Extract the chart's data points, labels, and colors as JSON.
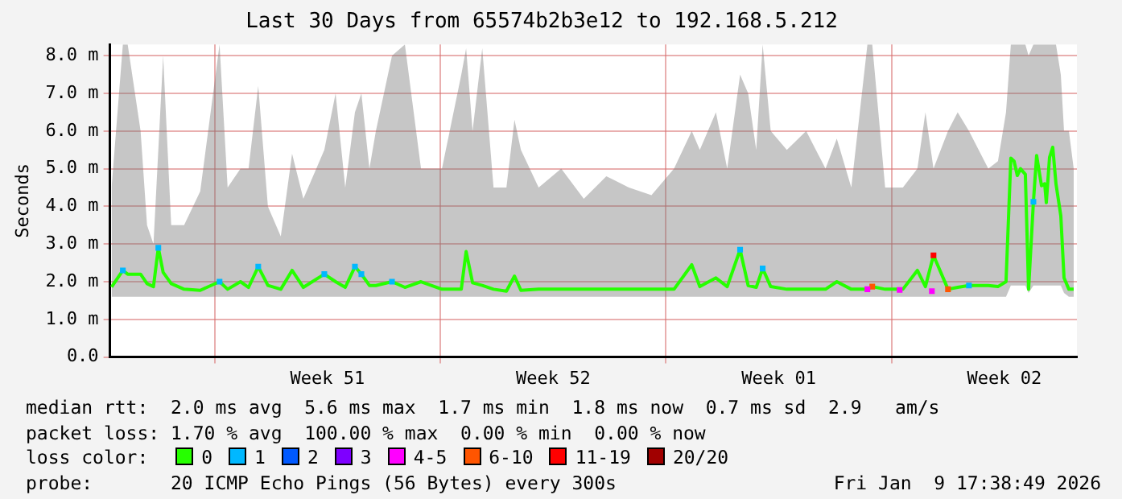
{
  "chart_data": {
    "type": "line",
    "title": "Last 30 Days from 65574b2b3e12 to 192.168.5.212",
    "ylabel": "Seconds",
    "xlim": [
      "2025-12-10T18:00",
      "2026-01-09T18:00"
    ],
    "xticks": [
      {
        "value": "2025-12-14T00:00",
        "label": null
      },
      {
        "value": "2025-12-17T12:00",
        "label": "Week 51"
      },
      {
        "value": "2025-12-21T00:00",
        "label": null
      },
      {
        "value": "2025-12-24T12:00",
        "label": "Week 52"
      },
      {
        "value": "2025-12-28T00:00",
        "label": null
      },
      {
        "value": "2025-12-31T12:00",
        "label": "Week 01"
      },
      {
        "value": "2026-01-04T00:00",
        "label": null
      },
      {
        "value": "2026-01-07T12:00",
        "label": "Week 02"
      }
    ],
    "ylim": [
      0,
      8.3
    ],
    "yticks": [
      {
        "value": 0,
        "label": "0.0"
      },
      {
        "value": 1,
        "label": "1.0 m"
      },
      {
        "value": 2,
        "label": "2.0 m"
      },
      {
        "value": 3,
        "label": "3.0 m"
      },
      {
        "value": 4,
        "label": "4.0 m"
      },
      {
        "value": 5,
        "label": "5.0 m"
      },
      {
        "value": 6,
        "label": "6.0 m"
      },
      {
        "value": 7,
        "label": "7.0 m"
      },
      {
        "value": 8,
        "label": "8.0 m"
      }
    ],
    "grid": true,
    "legend": "bottom",
    "legend_title": "loss color:",
    "marker": "none",
    "series": [
      {
        "name": "0",
        "color": "#26ff00",
        "x": [
          "2025-12-10T19:12",
          "2025-12-11T03:36",
          "2025-12-11T07:12",
          "2025-12-11T16:48",
          "2025-12-11T21:36",
          "2025-12-12T02:24",
          "2025-12-12T06:00",
          "2025-12-12T09:36",
          "2025-12-12T15:36",
          "2025-12-13T01:12",
          "2025-12-13T13:12",
          "2025-12-14T03:36",
          "2025-12-14T09:36",
          "2025-12-14T19:12",
          "2025-12-15T01:12",
          "2025-12-15T08:24",
          "2025-12-15T15:36",
          "2025-12-16T01:12",
          "2025-12-16T09:36",
          "2025-12-16T18:00",
          "2025-12-17T09:36",
          "2025-12-17T18:00",
          "2025-12-18T01:12",
          "2025-12-18T08:24",
          "2025-12-18T13:12",
          "2025-12-18T19:12",
          "2025-12-19T00:00",
          "2025-12-19T12:00",
          "2025-12-19T21:36",
          "2025-12-20T09:36",
          "2025-12-21T01:12",
          "2025-12-21T15:36",
          "2025-12-21T19:12",
          "2025-12-22T00:00",
          "2025-12-22T07:12",
          "2025-12-22T15:36",
          "2025-12-23T01:12",
          "2025-12-23T07:12",
          "2025-12-23T12:00",
          "2025-12-24T01:12",
          "2025-12-24T18:00",
          "2025-12-25T10:48",
          "2025-12-26T03:36",
          "2025-12-26T20:24",
          "2025-12-27T13:12",
          "2025-12-28T06:00",
          "2025-12-28T19:12",
          "2025-12-29T01:12",
          "2025-12-29T13:12",
          "2025-12-29T21:36",
          "2025-12-30T07:12",
          "2025-12-30T13:12",
          "2025-12-30T19:12",
          "2025-12-31T00:00",
          "2025-12-31T06:00",
          "2025-12-31T18:00",
          "2026-01-01T08:24",
          "2026-01-01T22:48",
          "2026-01-02T07:12",
          "2026-01-02T18:00",
          "2026-01-03T06:00",
          "2026-01-03T09:36",
          "2026-01-03T19:12",
          "2026-01-04T08:24",
          "2026-01-04T19:12",
          "2026-01-05T01:12",
          "2026-01-05T07:12",
          "2026-01-05T18:00",
          "2026-01-06T01:12",
          "2026-01-06T09:36",
          "2026-01-07T00:00",
          "2026-01-07T07:12",
          "2026-01-07T13:12",
          "2026-01-07T16:48",
          "2026-01-07T19:12",
          "2026-01-07T21:36",
          "2026-01-08T00:00",
          "2026-01-08T03:36",
          "2026-01-08T06:00",
          "2026-01-08T09:36",
          "2026-01-08T12:00",
          "2026-01-08T15:36",
          "2026-01-08T18:00",
          "2026-01-08T19:12",
          "2026-01-08T21:36",
          "2026-01-09T00:00",
          "2026-01-09T02:24",
          "2026-01-09T06:00",
          "2026-01-09T08:24",
          "2026-01-09T12:00",
          "2026-01-09T15:36"
        ],
        "values": [
          1.86,
          2.3,
          2.2,
          2.2,
          1.95,
          1.87,
          2.9,
          2.25,
          1.95,
          1.8,
          1.77,
          2.0,
          1.8,
          2.0,
          1.85,
          2.4,
          1.9,
          1.8,
          2.3,
          1.85,
          2.2,
          2.0,
          1.85,
          2.4,
          2.2,
          1.9,
          1.9,
          2.0,
          1.85,
          2.0,
          1.8,
          1.8,
          2.8,
          1.97,
          1.9,
          1.8,
          1.75,
          2.15,
          1.77,
          1.8,
          1.8,
          1.8,
          1.8,
          1.8,
          1.8,
          1.8,
          2.45,
          1.87,
          2.1,
          1.87,
          2.85,
          1.9,
          1.85,
          2.35,
          1.87,
          1.8,
          1.8,
          1.8,
          2.0,
          1.8,
          1.8,
          1.87,
          1.8,
          1.8,
          2.3,
          1.87,
          2.7,
          1.8,
          1.85,
          1.9,
          1.9,
          1.87,
          2.0,
          5.28,
          5.2,
          4.82,
          5.0,
          4.85,
          1.8,
          4.12,
          5.35,
          4.55,
          4.6,
          4.1,
          5.3,
          5.57,
          4.6,
          3.75,
          2.1,
          1.8,
          1.8
        ],
        "lower": [
          1.6,
          1.6,
          1.6,
          1.6,
          1.6,
          1.6,
          1.6,
          1.6,
          1.6,
          1.6,
          1.6,
          1.6,
          1.6,
          1.6,
          1.6,
          1.6,
          1.6,
          1.6,
          1.6,
          1.6,
          1.6,
          1.6,
          1.6,
          1.6,
          1.6,
          1.6,
          1.6,
          1.6,
          1.6,
          1.6,
          1.6,
          1.6,
          1.6,
          1.6,
          1.6,
          1.6,
          1.6,
          1.6,
          1.6,
          1.6,
          1.6,
          1.6,
          1.6,
          1.6,
          1.6,
          1.6,
          1.6,
          1.6,
          1.6,
          1.6,
          1.6,
          1.6,
          1.6,
          1.6,
          1.6,
          1.6,
          1.6,
          1.6,
          1.6,
          1.6,
          1.6,
          1.6,
          1.6,
          1.6,
          1.6,
          1.6,
          1.6,
          1.6,
          1.6,
          1.6,
          1.6,
          1.6,
          1.6,
          1.9,
          1.9,
          1.9,
          1.9,
          1.9,
          1.7,
          1.9,
          1.9,
          1.9,
          1.9,
          1.9,
          1.9,
          1.9,
          1.9,
          1.9,
          1.7,
          1.6,
          1.6
        ],
        "upper": [
          4.5,
          8.3,
          8.3,
          6,
          3.5,
          3,
          5.5,
          8,
          3.5,
          3.5,
          4.4,
          8.3,
          4.5,
          5,
          5,
          7.2,
          4,
          3.2,
          5.4,
          4.2,
          5.5,
          7,
          4.5,
          6.5,
          7,
          5,
          6,
          8,
          8.3,
          5,
          5,
          7.5,
          8.2,
          6,
          8.2,
          4.5,
          4.5,
          6.3,
          5.5,
          4.5,
          5,
          4.2,
          4.8,
          4.5,
          4.3,
          5,
          6,
          5.5,
          6.5,
          5,
          7.5,
          7,
          5.5,
          8.3,
          6,
          5.5,
          6,
          5,
          5.8,
          4.5,
          8.3,
          8.3,
          4.5,
          4.5,
          5,
          6.5,
          5,
          6,
          6.5,
          6,
          5,
          5.2,
          6.5,
          8.3,
          8.3,
          8.3,
          8.3,
          8.3,
          8,
          8.3,
          8.3,
          8.3,
          8.3,
          8.3,
          8.3,
          8.3,
          8.3,
          7.5,
          6,
          6,
          5
        ]
      },
      {
        "name": "1",
        "color": "#00b8ff",
        "type": "scatter",
        "marker": "square",
        "x": [
          "2025-12-11T03:36",
          "2025-12-12T06:00",
          "2025-12-14T03:36",
          "2025-12-15T08:24",
          "2025-12-17T09:36",
          "2025-12-18T08:24",
          "2025-12-18T13:12",
          "2025-12-19T12:00",
          "2025-12-30T07:12",
          "2025-12-31T00:00",
          "2026-01-06T09:36",
          "2026-01-08T09:36"
        ],
        "values": [
          2.3,
          2.9,
          2.0,
          2.4,
          2.2,
          2.4,
          2.2,
          2.0,
          2.85,
          2.35,
          1.9,
          4.12
        ]
      },
      {
        "name": "2",
        "color": "#0059ff",
        "type": "scatter",
        "marker": "square"
      },
      {
        "name": "3",
        "color": "#7e00ff",
        "type": "scatter",
        "marker": "square"
      },
      {
        "name": "4-5",
        "color": "#ff00ff",
        "type": "scatter",
        "marker": "square",
        "x": [
          "2026-01-03T06:00",
          "2026-01-04T06:00",
          "2026-01-05T06:00"
        ],
        "values": [
          1.8,
          1.78,
          1.75
        ]
      },
      {
        "name": "6-10",
        "color": "#ff5500",
        "type": "scatter",
        "marker": "square",
        "x": [
          "2026-01-03T09:36",
          "2026-01-05T18:00"
        ],
        "values": [
          1.87,
          1.8
        ]
      },
      {
        "name": "11-19",
        "color": "#ff0000",
        "type": "scatter",
        "marker": "square",
        "x": [
          "2026-01-05T07:12"
        ],
        "values": [
          2.7
        ]
      },
      {
        "name": "20/20",
        "color": "#a10000",
        "type": "scatter",
        "marker": "square"
      }
    ],
    "annotations": [
      "median rtt:  2.0 ms avg  5.6 ms max  1.7 ms min  1.8 ms now  0.7 ms sd  2.9   am/s",
      "packet loss: 1.70 % avg  100.00 % max  0.00 % min  0.00 % now",
      "probe:       20 ICMP Echo Pings (56 Bytes) every 300s",
      "Fri Jan  9 17:38:49 2026"
    ]
  }
}
